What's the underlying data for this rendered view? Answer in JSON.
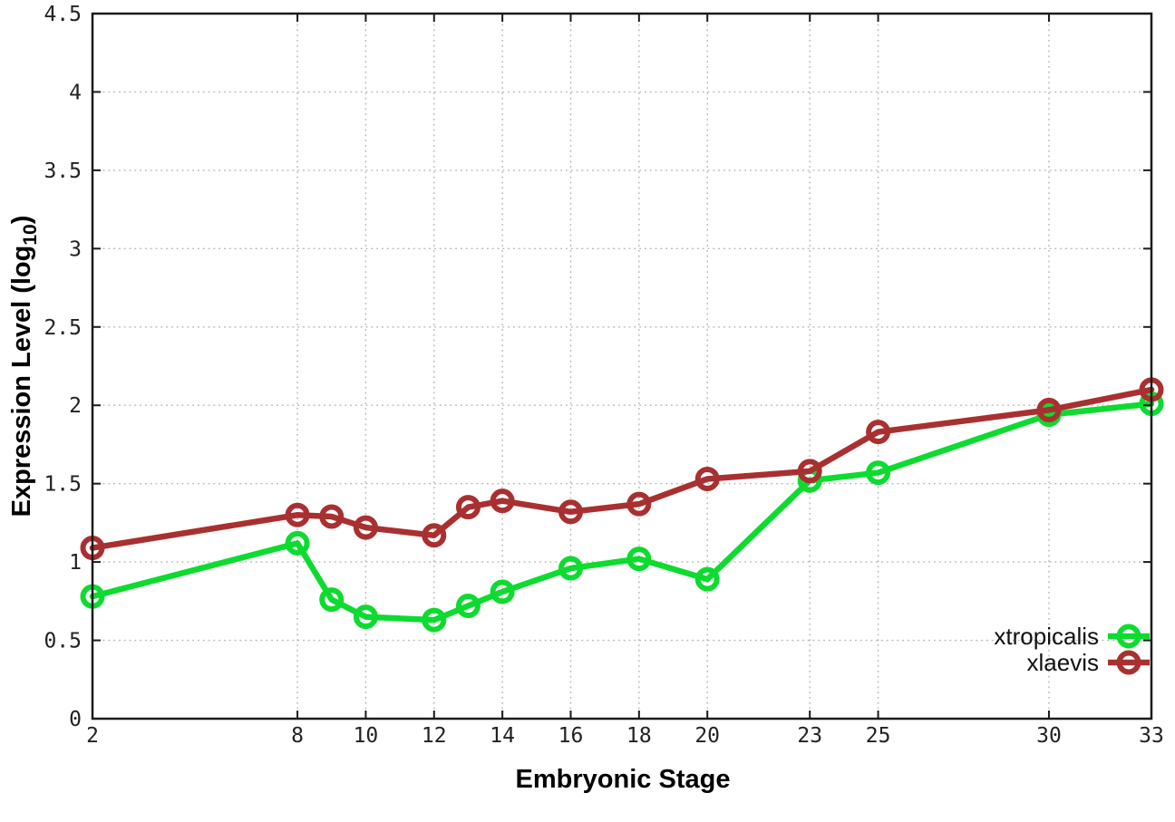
{
  "colors": {
    "background": "#ffffff",
    "axis": "#1a1a1a",
    "grid": "#b5b5b5",
    "tick_label": "#222222",
    "xtropicalis_green": "#0ddb2f",
    "xlaevis_red": "#a93030"
  },
  "axis_titles": {
    "x": "Embryonic Stage",
    "y_main": "Expression Level (log",
    "y_sub": "10",
    "y_end": ")"
  },
  "chart_data": {
    "type": "line",
    "title": "",
    "xlabel": "Embryonic Stage",
    "ylabel": "Expression Level (log10)",
    "grid": true,
    "legend_position": "bottom-right",
    "xlim": [
      2,
      33
    ],
    "ylim": [
      0,
      4.5
    ],
    "x": [
      2,
      8,
      9,
      10,
      12,
      13,
      14,
      16,
      18,
      20,
      23,
      25,
      30,
      33
    ],
    "x_ticks": [
      2,
      8,
      10,
      12,
      14,
      16,
      18,
      20,
      23,
      25,
      30,
      33
    ],
    "x_tick_labels": [
      "2",
      "8",
      "10",
      "12",
      "14",
      "16",
      "18",
      "20",
      "23",
      "25",
      "30",
      "33"
    ],
    "y_ticks": [
      0,
      0.5,
      1,
      1.5,
      2,
      2.5,
      3,
      3.5,
      4,
      4.5
    ],
    "y_tick_labels": [
      "0",
      "0.5",
      "1",
      "1.5",
      "2",
      "2.5",
      "3",
      "3.5",
      "4",
      "4.5"
    ],
    "series": [
      {
        "name": "xtropicalis",
        "color": "#0ddb2f",
        "marker": "open-circle",
        "values": [
          0.78,
          1.12,
          0.76,
          0.65,
          0.63,
          0.72,
          0.81,
          0.96,
          1.02,
          0.89,
          1.52,
          1.57,
          1.94,
          2.01
        ]
      },
      {
        "name": "xlaevis",
        "color": "#a93030",
        "marker": "open-circle",
        "values": [
          1.09,
          1.3,
          1.29,
          1.22,
          1.17,
          1.35,
          1.39,
          1.32,
          1.37,
          1.53,
          1.58,
          1.83,
          1.97,
          2.1
        ]
      }
    ]
  }
}
